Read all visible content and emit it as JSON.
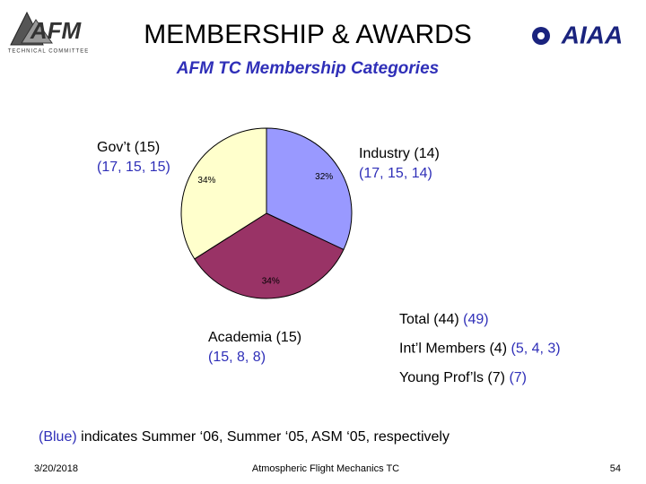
{
  "header": {
    "left_logo": "AFM",
    "left_logo_caption": "TECHNICAL COMMITTEE",
    "right_logo": "AIAA"
  },
  "chart_data": {
    "type": "pie",
    "title": "MEMBERSHIP & AWARDS",
    "subtitle": "AFM TC Membership Categories",
    "categories": [
      "Industry (14)",
      "Academia (15)",
      "Gov’t (15)"
    ],
    "category_history": [
      "(17, 15, 14)",
      "(15, 8, 8)",
      "(17, 15, 15)"
    ],
    "values": [
      32,
      34,
      34
    ],
    "value_labels": [
      "32%",
      "34%",
      "34%"
    ],
    "colors": [
      "#9999ff",
      "#993366",
      "#ffffcc"
    ]
  },
  "totals": [
    {
      "text": "Total (44)",
      "history": "(49)"
    },
    {
      "text": "Int’l Members (4)",
      "history": "(5, 4, 3)"
    },
    {
      "text": "Young Prof’ls (7)",
      "history": "(7)"
    }
  ],
  "note": {
    "key": "(Blue)",
    "text": "indicates Summer ‘06, Summer ‘05, ASM ‘05, respectively"
  },
  "footer": {
    "date": "3/20/2018",
    "center": "Atmospheric Flight Mechanics TC",
    "page": "54"
  }
}
